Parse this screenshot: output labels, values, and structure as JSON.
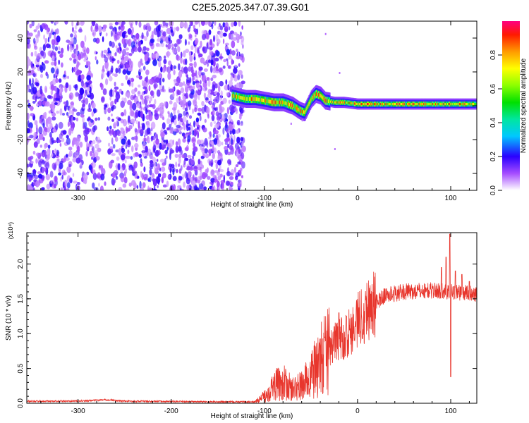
{
  "title": "C2E5.2025.347.07.39.G01",
  "chart_data": [
    {
      "type": "heatmap",
      "name": "spectrogram",
      "xlabel": "Height of straight line (km)",
      "ylabel": "Frequency (Hz)",
      "xlim": [
        -355,
        128
      ],
      "ylim": [
        -50,
        50
      ],
      "xticks": [
        -300,
        -200,
        -100,
        0,
        100
      ],
      "yticks": [
        -40,
        -20,
        0,
        20,
        40
      ],
      "noise_region_x": [
        -355,
        -122
      ],
      "signal_ridge": [
        [
          -135,
          6
        ],
        [
          -120,
          4
        ],
        [
          -110,
          4
        ],
        [
          -100,
          3
        ],
        [
          -90,
          2
        ],
        [
          -80,
          2
        ],
        [
          -70,
          0
        ],
        [
          -62,
          -3
        ],
        [
          -57,
          -4
        ],
        [
          -50,
          4
        ],
        [
          -45,
          7
        ],
        [
          -40,
          6
        ],
        [
          -35,
          3
        ],
        [
          -25,
          2
        ],
        [
          -15,
          2
        ],
        [
          0,
          1
        ],
        [
          25,
          1
        ],
        [
          50,
          1
        ],
        [
          75,
          1
        ],
        [
          100,
          1
        ],
        [
          128,
          1
        ]
      ],
      "colorbar": {
        "label": "Normalized spectral amplitude",
        "range": [
          0,
          1
        ],
        "ticks": [
          0.0,
          0.2,
          0.4,
          0.6,
          0.8
        ]
      }
    },
    {
      "type": "line",
      "name": "snr",
      "xlabel": "Height of straight line (km)",
      "ylabel": "SNR (10 * v/v)",
      "scale_note": "(x10⁴)",
      "xlim": [
        -355,
        128
      ],
      "ylim": [
        0,
        2.45
      ],
      "xticks": [
        -300,
        -200,
        -100,
        0,
        100
      ],
      "yticks": [
        0.0,
        0.5,
        1.0,
        1.5,
        2.0
      ],
      "color": "#e8362d",
      "envelope": [
        [
          -355,
          0.03
        ],
        [
          -300,
          0.03
        ],
        [
          -270,
          0.05
        ],
        [
          -250,
          0.03
        ],
        [
          -150,
          0.02
        ],
        [
          -110,
          0.02
        ],
        [
          -100,
          0.1
        ],
        [
          -90,
          0.25
        ],
        [
          -80,
          0.3
        ],
        [
          -70,
          0.2
        ],
        [
          -60,
          0.25
        ],
        [
          -50,
          0.4
        ],
        [
          -40,
          0.6
        ],
        [
          -30,
          0.8
        ],
        [
          -20,
          0.9
        ],
        [
          -10,
          1.0
        ],
        [
          0,
          1.2
        ],
        [
          10,
          1.35
        ],
        [
          20,
          1.45
        ],
        [
          30,
          1.55
        ],
        [
          50,
          1.6
        ],
        [
          80,
          1.62
        ],
        [
          100,
          1.6
        ],
        [
          128,
          1.58
        ]
      ],
      "spikes": [
        [
          -35,
          0.95
        ],
        [
          -25,
          1.1
        ],
        [
          -20,
          1.3
        ],
        [
          -12,
          1.25
        ],
        [
          -2,
          1.1
        ],
        [
          90,
          1.95
        ],
        [
          95,
          2.1
        ],
        [
          99,
          2.43
        ],
        [
          100,
          0.38
        ],
        [
          105,
          1.9
        ],
        [
          112,
          1.85
        ],
        [
          120,
          1.75
        ]
      ]
    }
  ]
}
